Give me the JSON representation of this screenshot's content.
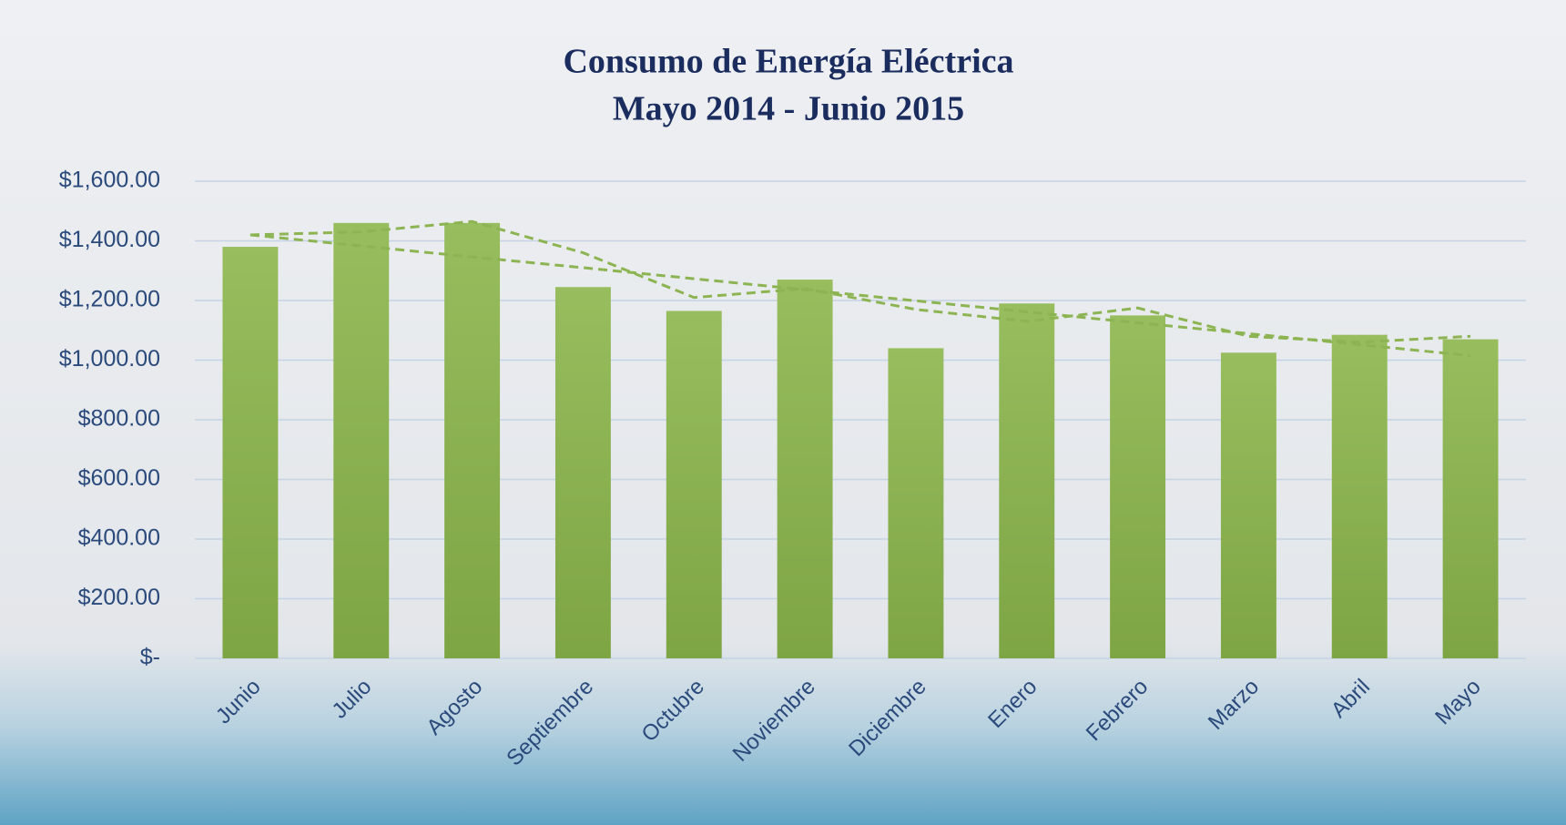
{
  "chart_data": {
    "type": "bar",
    "title": "Consumo de Energía Eléctrica",
    "subtitle": "Mayo 2014 - Junio 2015",
    "categories": [
      "Junio",
      "Julio",
      "Agosto",
      "Septiembre",
      "Octubre",
      "Noviembre",
      "Diciembre",
      "Enero",
      "Febrero",
      "Marzo",
      "Abril",
      "Mayo"
    ],
    "values": [
      1380,
      1460,
      1460,
      1245,
      1165,
      1270,
      1040,
      1190,
      1150,
      1025,
      1085,
      1070
    ],
    "color": "#8db452",
    "trendlines": [
      {
        "color": "#8db452",
        "values": [
          1420,
          1383,
          1346,
          1310,
          1273,
          1236,
          1199,
          1162,
          1125,
          1089,
          1052,
          1015
        ]
      },
      {
        "color": "#8db452",
        "values": [
          1420,
          1430,
          1465,
          1360,
          1210,
          1240,
          1170,
          1130,
          1175,
          1080,
          1060,
          1080
        ]
      }
    ],
    "ylim": [
      0,
      1600
    ],
    "yticks": [
      {
        "value": 0,
        "label": "$-"
      },
      {
        "value": 200,
        "label": "$200.00"
      },
      {
        "value": 400,
        "label": "$400.00"
      },
      {
        "value": 600,
        "label": "$600.00"
      },
      {
        "value": 800,
        "label": "$800.00"
      },
      {
        "value": 1000,
        "label": "$1,000.00"
      },
      {
        "value": 1200,
        "label": "$1,200.00"
      },
      {
        "value": 1400,
        "label": "$1,400.00"
      },
      {
        "value": 1600,
        "label": "$1,600.00"
      }
    ],
    "grid": true
  }
}
